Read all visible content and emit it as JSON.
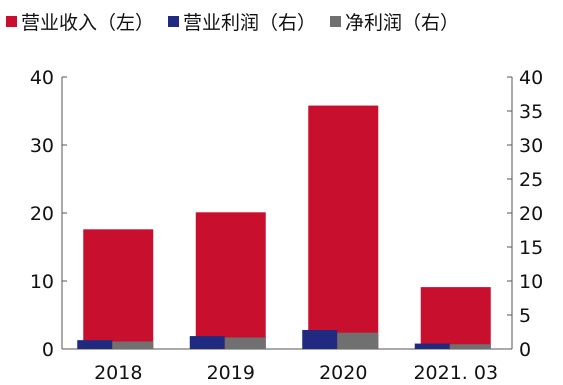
{
  "chart_data": {
    "type": "bar",
    "categories": [
      "2018",
      "2019",
      "2020",
      "2021. 03"
    ],
    "series": [
      {
        "name": "营业收入（左）",
        "axis": "left",
        "color": "#c8102e",
        "values": [
          17.6,
          20.1,
          35.8,
          9.1
        ]
      },
      {
        "name": "营业利润（右）",
        "axis": "right",
        "color": "#1f2a80",
        "values": [
          1.3,
          1.9,
          2.8,
          0.8
        ]
      },
      {
        "name": "净利润（右）",
        "axis": "right",
        "color": "#707070",
        "values": [
          1.1,
          1.7,
          2.4,
          0.7
        ]
      }
    ],
    "y_left": {
      "range": [
        0,
        40
      ],
      "ticks": [
        "0",
        "10",
        "20",
        "30",
        "40"
      ]
    },
    "y_right": {
      "range": [
        0,
        40
      ],
      "ticks": [
        "0",
        "5",
        "10",
        "15",
        "20",
        "25",
        "30",
        "35",
        "40"
      ]
    },
    "legend_position": "top",
    "grid": false
  }
}
